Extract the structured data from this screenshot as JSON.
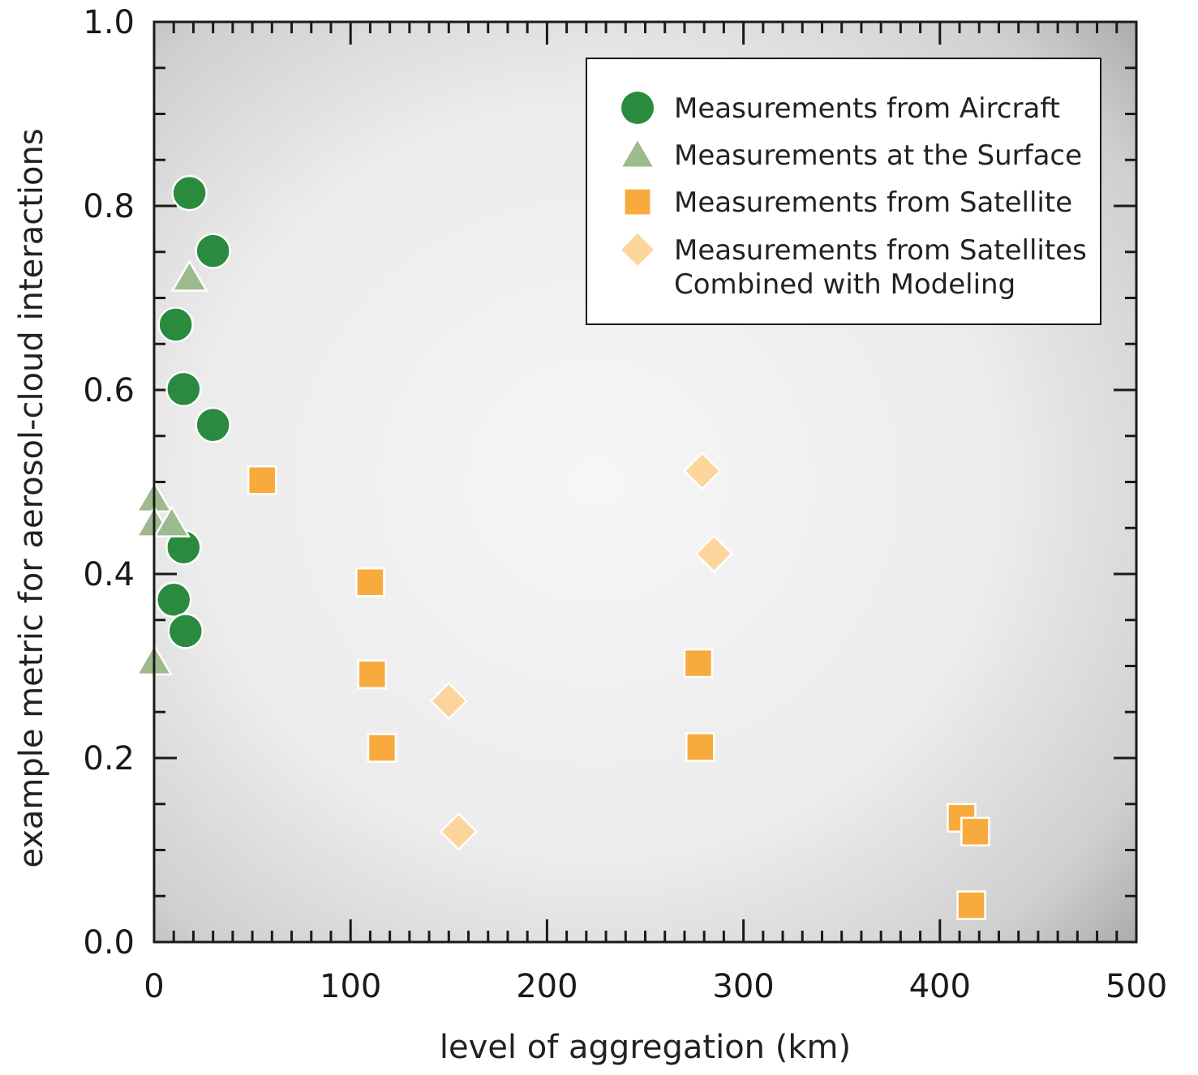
{
  "chart_data": {
    "type": "scatter",
    "title": "",
    "xlabel": "level of aggregation (km)",
    "ylabel": "example metric for aerosol-cloud interactions",
    "xlim": [
      0,
      500
    ],
    "ylim": [
      0.0,
      1.0
    ],
    "x_ticks": [
      "0",
      "100",
      "200",
      "300",
      "400",
      "500"
    ],
    "y_ticks": [
      "0.0",
      "0.2",
      "0.4",
      "0.6",
      "0.8",
      "1.0"
    ],
    "x_tick_values": [
      0,
      100,
      200,
      300,
      400,
      500
    ],
    "y_tick_values": [
      0.0,
      0.2,
      0.4,
      0.6,
      0.8,
      1.0
    ],
    "grid": false,
    "legend_position": "top-right",
    "background": "radial gradient, light center fading to gray corners",
    "series": [
      {
        "name": "Measurements from Aircraft",
        "marker": "circle",
        "color": "#2a8a3e",
        "points": [
          {
            "x": 18,
            "y": 0.814
          },
          {
            "x": 30,
            "y": 0.751
          },
          {
            "x": 11,
            "y": 0.671
          },
          {
            "x": 15,
            "y": 0.601
          },
          {
            "x": 30,
            "y": 0.562
          },
          {
            "x": 15,
            "y": 0.429
          },
          {
            "x": 10,
            "y": 0.372
          },
          {
            "x": 16,
            "y": 0.338
          }
        ]
      },
      {
        "name": "Measurements at the Surface",
        "marker": "triangle",
        "color": "#9dba8f",
        "points": [
          {
            "x": 18,
            "y": 0.722
          },
          {
            "x": 0,
            "y": 0.482
          },
          {
            "x": 0,
            "y": 0.455
          },
          {
            "x": 9,
            "y": 0.455
          },
          {
            "x": 0,
            "y": 0.305
          }
        ]
      },
      {
        "name": "Measurements from Satellite",
        "marker": "square",
        "color": "#f7ab3c",
        "points": [
          {
            "x": 55,
            "y": 0.502
          },
          {
            "x": 110,
            "y": 0.391
          },
          {
            "x": 111,
            "y": 0.291
          },
          {
            "x": 116,
            "y": 0.211
          },
          {
            "x": 277,
            "y": 0.303
          },
          {
            "x": 278,
            "y": 0.212
          },
          {
            "x": 411,
            "y": 0.135
          },
          {
            "x": 418,
            "y": 0.12
          },
          {
            "x": 416,
            "y": 0.04
          }
        ]
      },
      {
        "name": "Measurements from Satellites Combined with Modeling",
        "legend_lines": [
          "Measurements from Satellites",
          "Combined with Modeling"
        ],
        "marker": "diamond",
        "color": "#fdd49c",
        "points": [
          {
            "x": 279,
            "y": 0.512
          },
          {
            "x": 285,
            "y": 0.422
          },
          {
            "x": 150,
            "y": 0.262
          },
          {
            "x": 155,
            "y": 0.12
          }
        ]
      }
    ]
  }
}
